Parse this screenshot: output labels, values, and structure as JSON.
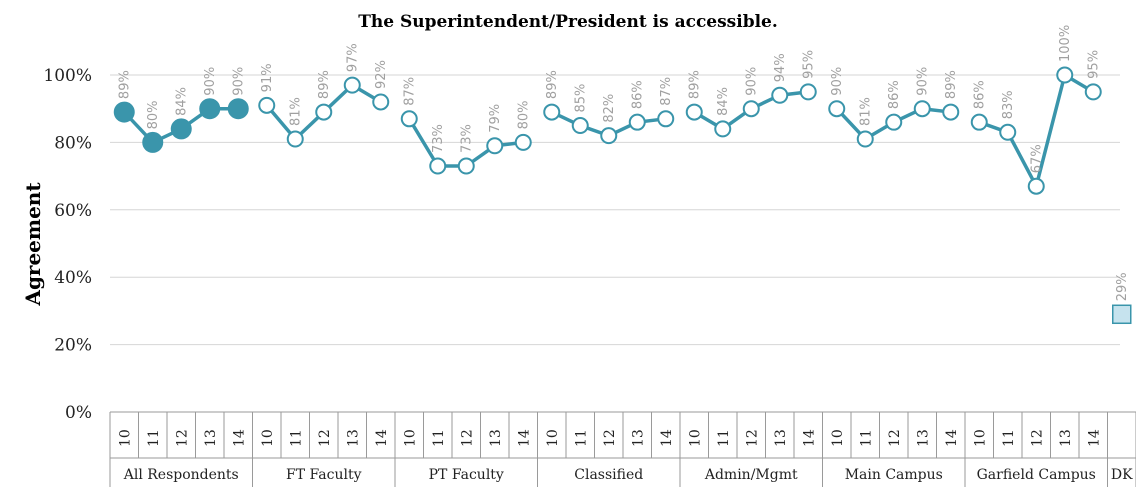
{
  "chart_data": {
    "type": "line",
    "title": "The Superintendent/President is accessible.",
    "ylabel": "Agreement",
    "xlabel": "",
    "ylim": [
      0,
      100
    ],
    "yticks": [
      "0%",
      "20%",
      "40%",
      "60%",
      "80%",
      "100%"
    ],
    "grid": true,
    "colors": {
      "line": "#3a95ab",
      "dk_fill": "#c6e3ee",
      "marker_open_fill": "#ffffff"
    },
    "groups": [
      {
        "name": "All Respondents",
        "years": [
          "10",
          "11",
          "12",
          "13",
          "14"
        ],
        "values": [
          89,
          80,
          84,
          90,
          90
        ],
        "labels": [
          "89%",
          "80%",
          "84%",
          "90%",
          "90%"
        ],
        "marker": "filled"
      },
      {
        "name": "FT Faculty",
        "years": [
          "10",
          "11",
          "12",
          "13",
          "14"
        ],
        "values": [
          91,
          81,
          89,
          97,
          92
        ],
        "labels": [
          "91%",
          "81%",
          "89%",
          "97%",
          "92%"
        ],
        "marker": "open"
      },
      {
        "name": "PT Faculty",
        "years": [
          "10",
          "11",
          "12",
          "13",
          "14"
        ],
        "values": [
          87,
          73,
          73,
          79,
          80
        ],
        "labels": [
          "87%",
          "73%",
          "73%",
          "79%",
          "80%"
        ],
        "marker": "open"
      },
      {
        "name": "Classified",
        "years": [
          "10",
          "11",
          "12",
          "13",
          "14"
        ],
        "values": [
          89,
          85,
          82,
          86,
          87
        ],
        "labels": [
          "89%",
          "85%",
          "82%",
          "86%",
          "87%"
        ],
        "marker": "open"
      },
      {
        "name": "Admin/Mgmt",
        "years": [
          "10",
          "11",
          "12",
          "13",
          "14"
        ],
        "values": [
          89,
          84,
          90,
          94,
          95
        ],
        "labels": [
          "89%",
          "84%",
          "90%",
          "94%",
          "95%"
        ],
        "marker": "open"
      },
      {
        "name": "Main Campus",
        "years": [
          "10",
          "11",
          "12",
          "13",
          "14"
        ],
        "values": [
          90,
          81,
          86,
          90,
          89
        ],
        "labels": [
          "90%",
          "81%",
          "86%",
          "90%",
          "89%"
        ],
        "marker": "open"
      },
      {
        "name": "Garfield Campus",
        "years": [
          "10",
          "11",
          "12",
          "13",
          "14"
        ],
        "values": [
          86,
          83,
          67,
          100,
          95
        ],
        "labels": [
          "86%",
          "83%",
          "67%",
          "100%",
          "95%"
        ],
        "marker": "open"
      },
      {
        "name": "DK",
        "years": [
          ""
        ],
        "values": [
          29
        ],
        "labels": [
          "29%"
        ],
        "marker": "square"
      }
    ]
  }
}
